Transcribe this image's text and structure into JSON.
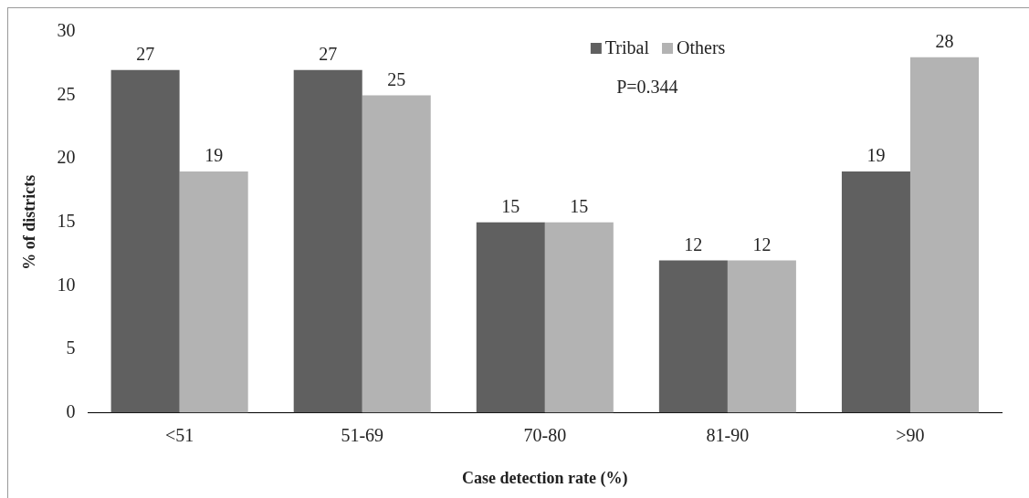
{
  "chart_data": {
    "type": "bar",
    "xlabel": "Case detection rate (%)",
    "ylabel": "% of districts",
    "categories": [
      "<51",
      "51-69",
      "70-80",
      "81-90",
      ">90"
    ],
    "series": [
      {
        "name": "Tribal",
        "color": "#606060",
        "values": [
          27,
          27,
          15,
          12,
          19
        ]
      },
      {
        "name": "Others",
        "color": "#b3b3b3",
        "values": [
          19,
          25,
          15,
          12,
          28
        ]
      }
    ],
    "ylim": [
      0,
      30
    ],
    "yticks": [
      0,
      5,
      10,
      15,
      20,
      25,
      30
    ],
    "grid": false,
    "legend": "top",
    "data_labels": true,
    "annotations": [
      "P=0.344"
    ]
  }
}
